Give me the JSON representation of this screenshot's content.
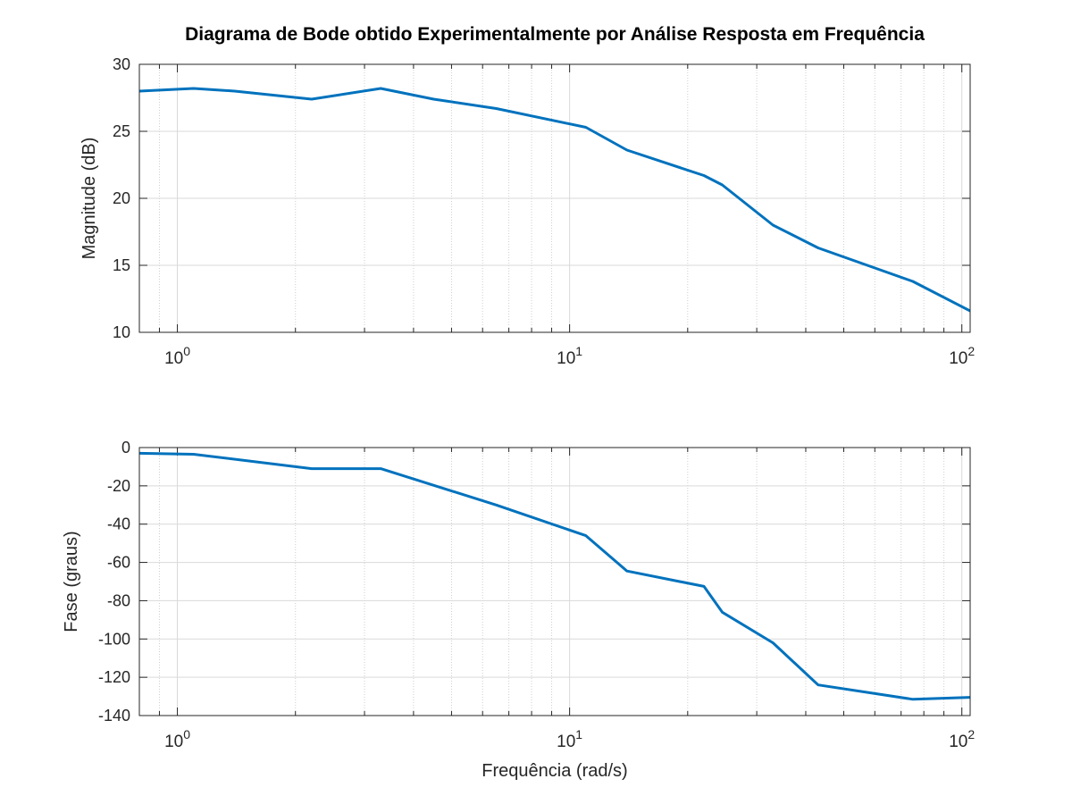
{
  "chart_data": [
    {
      "type": "line",
      "title": "Diagrama de Bode obtido Experimentalmente por Análise Resposta em Frequência",
      "xlabel": "",
      "ylabel": "Magnitude (dB)",
      "xscale": "log",
      "xlim": [
        0.8,
        105
      ],
      "ylim": [
        10,
        30
      ],
      "yticks": [
        10,
        15,
        20,
        25,
        30
      ],
      "xtick_base": "10",
      "xticks": [
        {
          "value": 1,
          "exponent": "0"
        },
        {
          "value": 10,
          "exponent": "1"
        },
        {
          "value": 100,
          "exponent": "2"
        }
      ],
      "grid": true,
      "series": [
        {
          "color": "#0072BD",
          "x": [
            0.8,
            1.1,
            1.4,
            2.2,
            3.3,
            4.5,
            6.5,
            11,
            14,
            22,
            24.5,
            33,
            43,
            75,
            105
          ],
          "y": [
            28.0,
            28.2,
            28.0,
            27.4,
            28.2,
            27.4,
            26.7,
            25.3,
            23.6,
            21.7,
            21.0,
            18.0,
            16.3,
            13.8,
            11.6
          ]
        }
      ]
    },
    {
      "type": "line",
      "title": "",
      "xlabel": "Frequência (rad/s)",
      "ylabel": "Fase (graus)",
      "xscale": "log",
      "xlim": [
        0.8,
        105
      ],
      "ylim": [
        -140,
        0
      ],
      "yticks": [
        -140,
        -120,
        -100,
        -80,
        -60,
        -40,
        -20,
        0
      ],
      "xtick_base": "10",
      "xticks": [
        {
          "value": 1,
          "exponent": "0"
        },
        {
          "value": 10,
          "exponent": "1"
        },
        {
          "value": 100,
          "exponent": "2"
        }
      ],
      "grid": true,
      "series": [
        {
          "color": "#0072BD",
          "x": [
            0.8,
            1.1,
            2.2,
            3.3,
            6.5,
            11,
            14,
            22,
            24.5,
            33,
            43,
            75,
            105
          ],
          "y": [
            -3.0,
            -3.5,
            -11.0,
            -11.0,
            -30.0,
            -46.0,
            -64.5,
            -72.5,
            -86.0,
            -102.0,
            -124.0,
            -131.5,
            -130.5
          ]
        }
      ]
    }
  ]
}
